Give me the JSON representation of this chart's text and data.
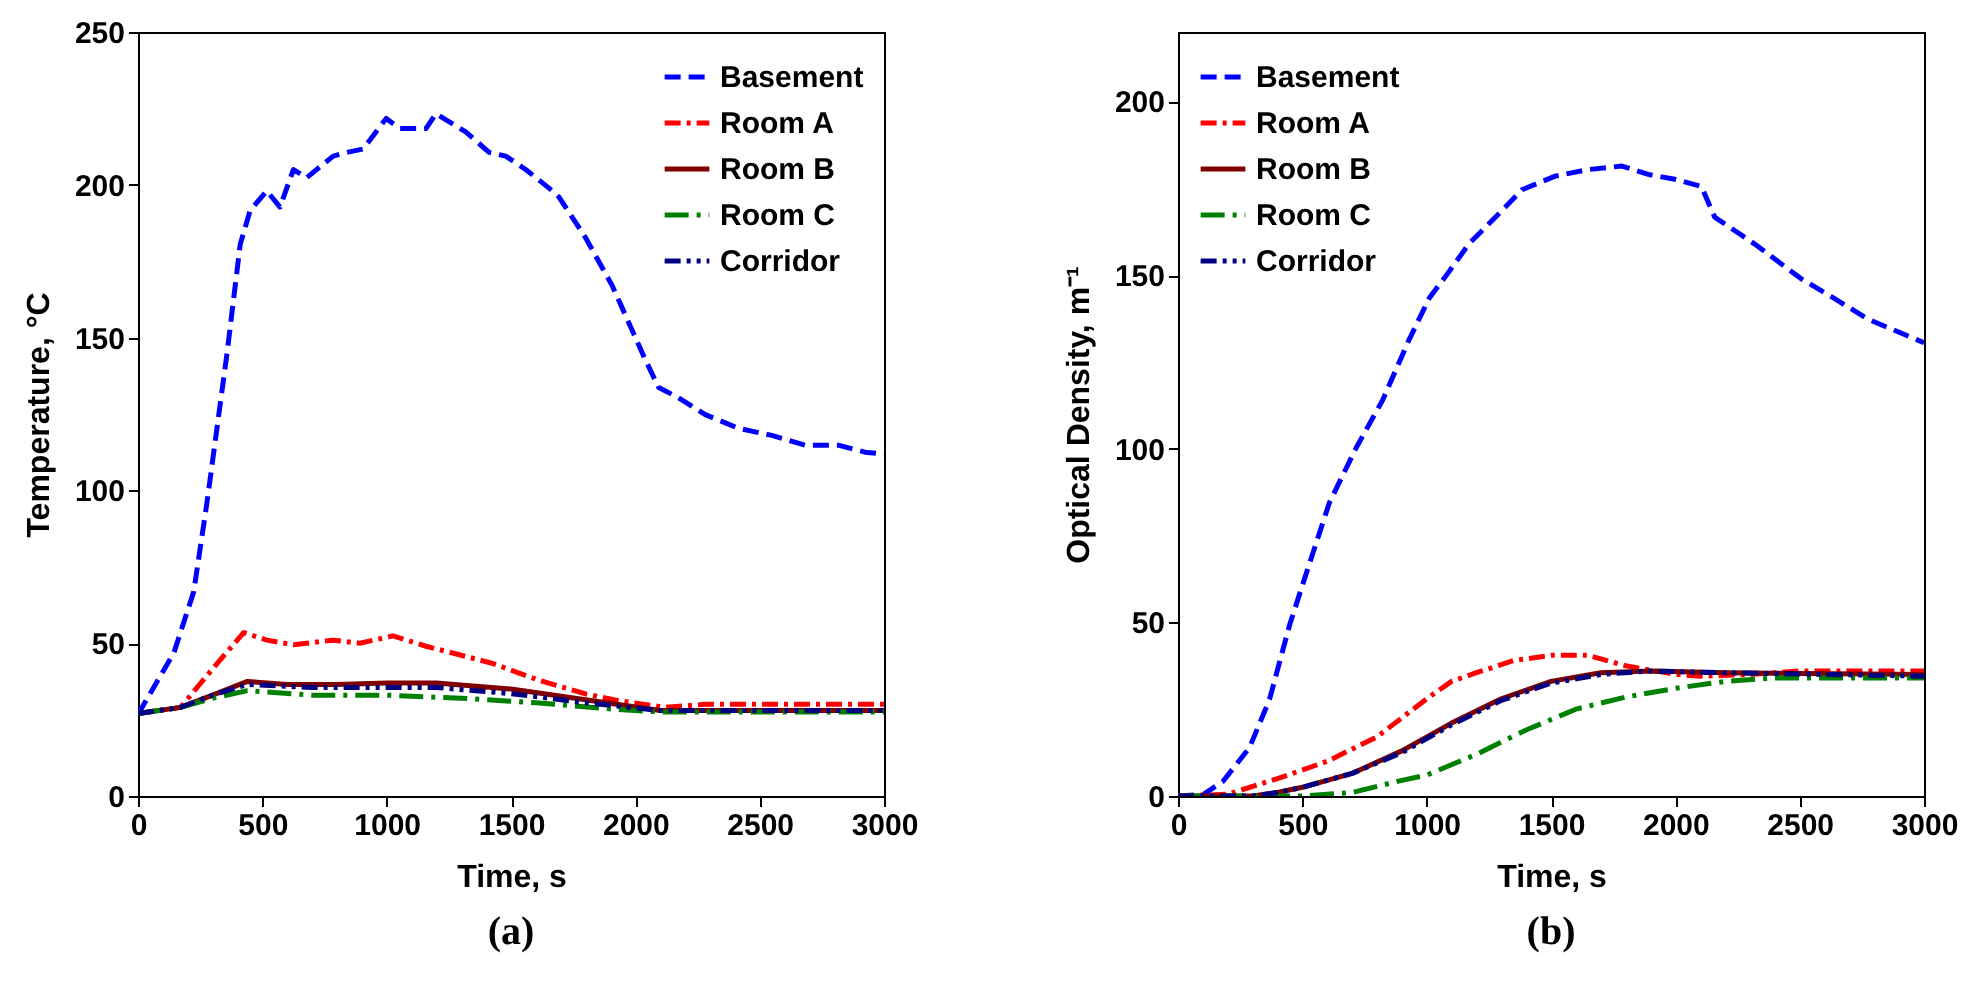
{
  "chart_data": [
    {
      "type": "line",
      "title": "(a)",
      "xlabel": "Time, s",
      "ylabel": "Temperature, °C",
      "xlim": [
        0,
        3000
      ],
      "ylim": [
        0,
        250
      ],
      "xticks": [
        0,
        500,
        1000,
        1500,
        2000,
        2500,
        3000
      ],
      "yticks": [
        0,
        50,
        100,
        150,
        200,
        250
      ],
      "legend": "top right",
      "grid": false,
      "series": [
        {
          "name": "Basement",
          "color": "#0000ff",
          "line_style": "dashed",
          "x": [
            0,
            144,
            224,
            277,
            358,
            411,
            451,
            518,
            571,
            625,
            678,
            785,
            839,
            905,
            998,
            1052,
            1158,
            1198,
            1318,
            1412,
            1479,
            1559,
            1667,
            1693,
            1800,
            1907,
            2041,
            2094,
            2174,
            2281,
            2415,
            2549,
            2683,
            2816,
            2923,
            3000
          ],
          "values": [
            26.7,
            46.8,
            66.8,
            95.8,
            144.8,
            180.5,
            191.6,
            198,
            192.7,
            205,
            202.3,
            209.4,
            210.6,
            211.7,
            221.7,
            218.4,
            218.4,
            223.3,
            217.3,
            210.6,
            209.4,
            205,
            198,
            196,
            182.7,
            167,
            142.6,
            133.7,
            130.3,
            124.8,
            120.3,
            118,
            114.8,
            114.8,
            112.5,
            111.9
          ]
        },
        {
          "name": "Room A",
          "color": "#ff0000",
          "line_style": "dashdot",
          "x": [
            0,
            171,
            304,
            425,
            518,
            625,
            785,
            892,
            1025,
            1158,
            1265,
            1425,
            1612,
            1800,
            1933,
            2121,
            2281,
            3000
          ],
          "values": [
            27,
            29,
            42,
            53.5,
            51,
            49.5,
            51,
            50,
            52.4,
            49,
            46.8,
            43.4,
            37.9,
            33.4,
            31.2,
            29,
            30,
            30
          ]
        },
        {
          "name": "Room B",
          "color": "#800000",
          "line_style": "solid",
          "x": [
            0,
            171,
            300,
            440,
            600,
            800,
            1000,
            1200,
            1500,
            1800,
            2100,
            3000
          ],
          "values": [
            27,
            29,
            33,
            37.5,
            36.5,
            36.5,
            37,
            37,
            35,
            31.5,
            28,
            28
          ]
        },
        {
          "name": "Room C",
          "color": "#008000",
          "line_style": "longdashdot",
          "x": [
            0,
            171,
            300,
            440,
            700,
            1000,
            1300,
            1600,
            1900,
            2100,
            3000
          ],
          "values": [
            27,
            29,
            32,
            34.5,
            33,
            33,
            32,
            30.5,
            28.5,
            27.5,
            27.5
          ]
        },
        {
          "name": "Corridor",
          "color": "#000080",
          "line_style": "dashdotdot",
          "x": [
            0,
            171,
            300,
            440,
            700,
            1000,
            1200,
            1500,
            1800,
            2100,
            3000
          ],
          "values": [
            27,
            29,
            33,
            36.5,
            35.5,
            35.5,
            35.5,
            33.5,
            30.5,
            28,
            28
          ]
        }
      ]
    },
    {
      "type": "line",
      "title": "(b)",
      "xlabel": "Time, s",
      "ylabel": "Optical Density, m⁻¹",
      "xlim": [
        0,
        3000
      ],
      "ylim": [
        0,
        220
      ],
      "xticks": [
        0,
        500,
        1000,
        1500,
        2000,
        2500,
        3000
      ],
      "yticks": [
        0,
        50,
        100,
        150,
        200
      ],
      "legend": "top left",
      "grid": false,
      "series": [
        {
          "name": "Basement",
          "color": "#0000ff",
          "line_style": "dashed",
          "x": [
            0,
            101,
            182,
            288,
            368,
            449,
            529,
            609,
            716,
            823,
            930,
            1010,
            1090,
            1170,
            1277,
            1384,
            1517,
            1651,
            1785,
            1891,
            1998,
            2105,
            2158,
            2318,
            2505,
            2639,
            2772,
            3000
          ],
          "values": [
            0,
            0.4,
            4.3,
            14,
            27.8,
            49.3,
            67,
            84.5,
            100.2,
            114,
            131.5,
            143.3,
            151,
            159,
            166.7,
            174.6,
            178.5,
            180.4,
            181.4,
            179,
            177.6,
            175.5,
            166.7,
            159,
            149,
            143.3,
            137.4,
            130.5
          ]
        },
        {
          "name": "Room A",
          "color": "#ff0000",
          "line_style": "dashdot",
          "x": [
            0,
            200,
            400,
            600,
            800,
            1000,
            1100,
            1200,
            1350,
            1500,
            1650,
            1800,
            2000,
            2100,
            2300,
            2500,
            3000
          ],
          "values": [
            0,
            0.5,
            5,
            10,
            17,
            28,
            33,
            35.5,
            39,
            40.5,
            40.5,
            37.5,
            35,
            34.5,
            35,
            36,
            36
          ]
        },
        {
          "name": "Room B",
          "color": "#800000",
          "line_style": "solid",
          "x": [
            0,
            300,
            400,
            500,
            700,
            900,
            1100,
            1300,
            1500,
            1700,
            1900,
            2200,
            3000
          ],
          "values": [
            0,
            0,
            1,
            2.5,
            6.5,
            13,
            21,
            28,
            33,
            35.5,
            36,
            35.5,
            35
          ]
        },
        {
          "name": "Room C",
          "color": "#008000",
          "line_style": "longdashdot",
          "x": [
            0,
            500,
            700,
            900,
            1000,
            1200,
            1400,
            1600,
            1800,
            2000,
            2200,
            2400,
            3000
          ],
          "values": [
            0,
            0,
            1,
            4.5,
            6,
            12,
            19,
            25,
            28.5,
            31,
            33,
            34,
            34
          ]
        },
        {
          "name": "Corridor",
          "color": "#000080",
          "line_style": "dashdotdot",
          "x": [
            0,
            300,
            400,
            500,
            700,
            900,
            1100,
            1300,
            1500,
            1700,
            1900,
            2200,
            3000
          ],
          "values": [
            0,
            0,
            1,
            2.5,
            6.5,
            12.5,
            20.5,
            27.5,
            32.5,
            35,
            36,
            35.5,
            34.5
          ]
        }
      ]
    }
  ]
}
